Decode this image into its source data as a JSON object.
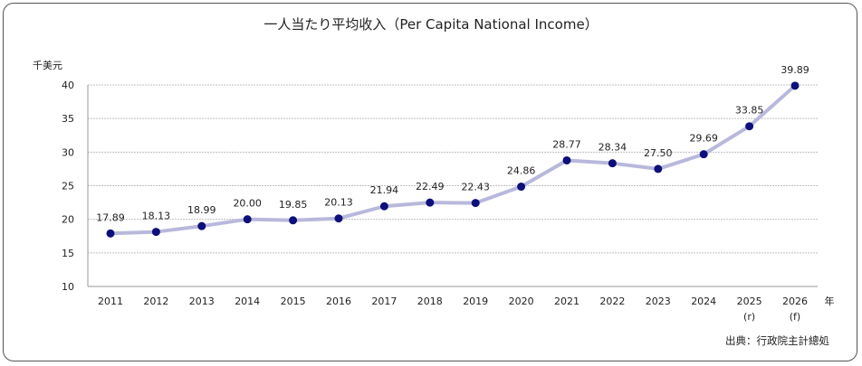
{
  "chart_data": {
    "type": "line",
    "title": "一人当たり平均收入（Per Capita National Income）",
    "y_unit": "千美元",
    "x_unit": "年",
    "source": "出典：行政院主計總処",
    "categories": [
      "2011",
      "2012",
      "2013",
      "2014",
      "2015",
      "2016",
      "2017",
      "2018",
      "2019",
      "2020",
      "2021",
      "2022",
      "2023",
      "2024",
      "2025",
      "2026"
    ],
    "category_notes": [
      "",
      "",
      "",
      "",
      "",
      "",
      "",
      "",
      "",
      "",
      "",
      "",
      "",
      "",
      "(r)",
      "(f)"
    ],
    "values": [
      17.89,
      18.13,
      18.99,
      20.0,
      19.85,
      20.13,
      21.94,
      22.49,
      22.43,
      24.86,
      28.77,
      28.34,
      27.5,
      29.69,
      33.85,
      39.89
    ],
    "value_labels": [
      "17.89",
      "18.13",
      "18.99",
      "20.00",
      "19.85",
      "20.13",
      "21.94",
      "22.49",
      "22.43",
      "24.86",
      "28.77",
      "28.34",
      "27.50",
      "29.69",
      "33.85",
      "39.89"
    ],
    "ylim": [
      10,
      40
    ],
    "yticks": [
      10,
      15,
      20,
      25,
      30,
      35,
      40
    ],
    "grid": true,
    "colors": {
      "line": "#b8b8dc",
      "marker": "#0d0f7a",
      "grid": "#bfbfbf"
    }
  }
}
